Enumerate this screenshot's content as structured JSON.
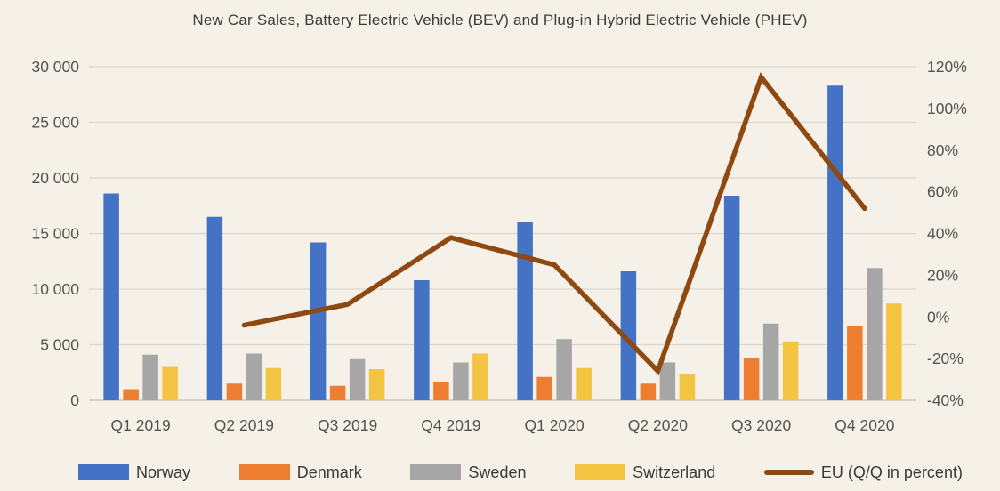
{
  "title": "New Car Sales, Battery Electric Vehicle (BEV) and Plug-in Hybrid Electric Vehicle (PHEV)",
  "colors": {
    "background": "#f5f1e8",
    "norway": "#4472c4",
    "denmark": "#ed7d31",
    "sweden": "#a6a6a6",
    "switzerland": "#f3c342",
    "eu_line": "#8e4910",
    "gridline": "#dad7ce",
    "axis_line": "#c6c3ba",
    "axis_text": "#55534f",
    "title_text": "#3a3a37"
  },
  "chart_data": {
    "type": "bar+line combo",
    "title": "New Car Sales, Battery Electric Vehicle (BEV) and Plug-in Hybrid Electric Vehicle (PHEV)",
    "grid": true,
    "legend_position": "bottom",
    "categories": [
      "Q1 2019",
      "Q2 2019",
      "Q3 2019",
      "Q4 2019",
      "Q1 2020",
      "Q2 2020",
      "Q3 2020",
      "Q4 2020"
    ],
    "series": [
      {
        "name": "Norway",
        "type": "bar",
        "axis": "left",
        "color_key": "norway",
        "values": [
          18600,
          16500,
          14200,
          10800,
          16000,
          11600,
          18400,
          28300
        ]
      },
      {
        "name": "Denmark",
        "type": "bar",
        "axis": "left",
        "color_key": "denmark",
        "values": [
          1000,
          1500,
          1300,
          1600,
          2100,
          1500,
          3800,
          6700
        ]
      },
      {
        "name": "Sweden",
        "type": "bar",
        "axis": "left",
        "color_key": "sweden",
        "values": [
          4100,
          4200,
          3700,
          3400,
          5500,
          3400,
          6900,
          11900
        ]
      },
      {
        "name": "Switzerland",
        "type": "bar",
        "axis": "left",
        "color_key": "switzerland",
        "values": [
          3000,
          2900,
          2800,
          4200,
          2900,
          2400,
          5300,
          8700
        ]
      },
      {
        "name": "EU (Q/Q in percent)",
        "type": "line",
        "axis": "right",
        "color_key": "eu_line",
        "values_percent": [
          null,
          -4,
          6,
          38,
          25,
          -26,
          115,
          52
        ]
      }
    ],
    "left_axis": {
      "min": 0,
      "max": 30000,
      "ticks": [
        {
          "value": 30000,
          "label": "30 000"
        },
        {
          "value": 25000,
          "label": "25 000"
        },
        {
          "value": 20000,
          "label": "20 000"
        },
        {
          "value": 15000,
          "label": "15 000"
        },
        {
          "value": 10000,
          "label": "10 000"
        },
        {
          "value": 5000,
          "label": "5 000"
        },
        {
          "value": 0,
          "label": "0"
        }
      ]
    },
    "right_axis": {
      "min": -40,
      "max": 120,
      "ticks": [
        {
          "value": 120,
          "label": "120%"
        },
        {
          "value": 100,
          "label": "100%"
        },
        {
          "value": 80,
          "label": "80%"
        },
        {
          "value": 60,
          "label": "60%"
        },
        {
          "value": 40,
          "label": "40%"
        },
        {
          "value": 20,
          "label": "20%"
        },
        {
          "value": 0,
          "label": "0%"
        },
        {
          "value": -20,
          "label": "-20%"
        },
        {
          "value": -40,
          "label": "-40%"
        }
      ]
    }
  }
}
